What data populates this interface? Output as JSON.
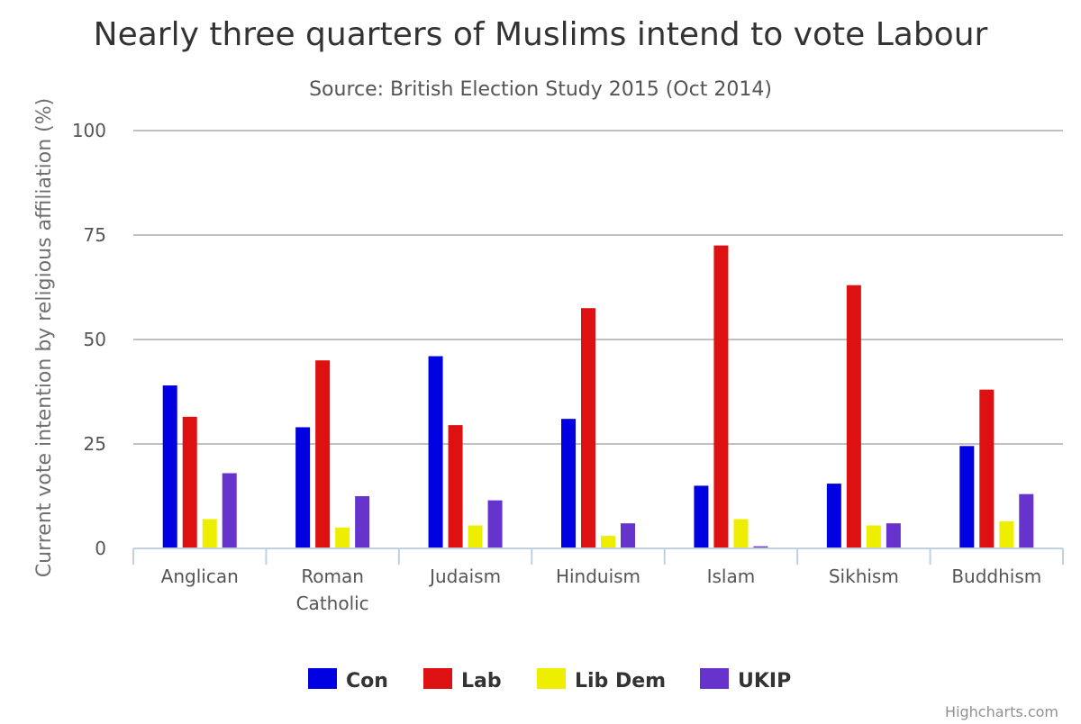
{
  "chart_data": {
    "type": "bar",
    "title": "Nearly three quarters of Muslims intend to vote Labour",
    "subtitle": "Source: British Election Study 2015 (Oct 2014)",
    "ylabel": "Current vote intention by religious affiliation (%)",
    "xlabel": "",
    "ylim": [
      0,
      100
    ],
    "yticks": [
      "0",
      "25",
      "50",
      "75",
      "100"
    ],
    "grid": true,
    "legend": "bottom-center",
    "categories": [
      [
        "Anglican"
      ],
      [
        "Roman",
        "Catholic"
      ],
      [
        "Judaism"
      ],
      [
        "Hinduism"
      ],
      [
        "Islam"
      ],
      [
        "Sikhism"
      ],
      [
        "Buddhism"
      ]
    ],
    "series": [
      {
        "name": "Con",
        "color": "#0000e0",
        "values": [
          39,
          29,
          46,
          31,
          15,
          15.5,
          24.5
        ]
      },
      {
        "name": "Lab",
        "color": "#dd1111",
        "values": [
          31.5,
          45,
          29.5,
          57.5,
          72.5,
          63,
          38
        ]
      },
      {
        "name": "Lib Dem",
        "color": "#eeee00",
        "values": [
          7,
          5,
          5.5,
          3,
          7,
          5.5,
          6.5
        ]
      },
      {
        "name": "UKIP",
        "color": "#6633cc",
        "values": [
          18,
          12.5,
          11.5,
          6,
          0.5,
          6,
          13
        ]
      }
    ],
    "credit": "Highcharts.com"
  }
}
